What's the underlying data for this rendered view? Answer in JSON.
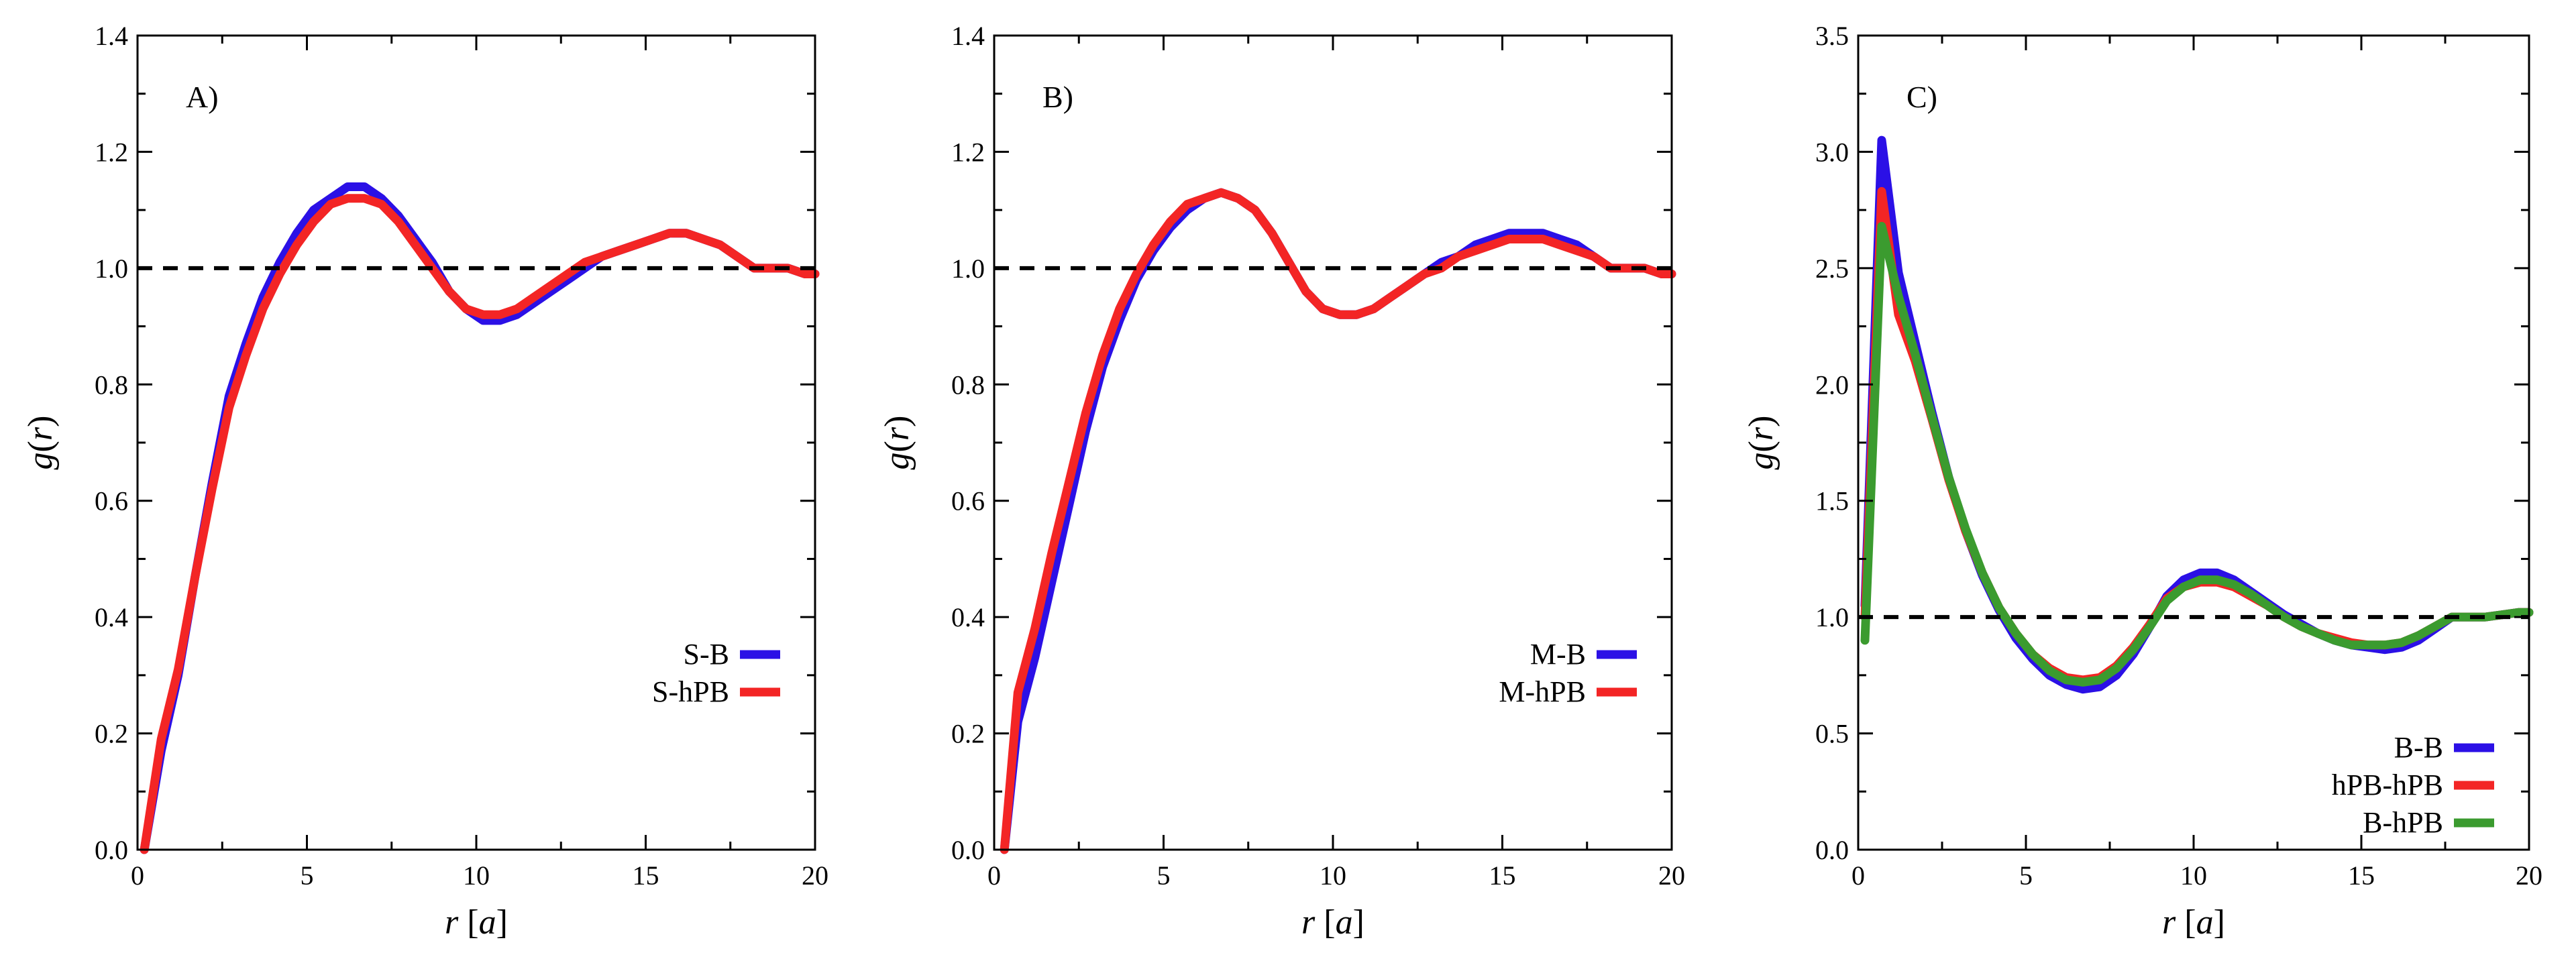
{
  "figure": {
    "xlabel_var": "r",
    "xlabel_unit": "a",
    "ylabel_fn": "g",
    "ylabel_arg": "r"
  },
  "chart_data": [
    {
      "type": "line",
      "panel_label": "A)",
      "xlim": [
        0,
        20
      ],
      "ylim": [
        0,
        1.4
      ],
      "xticks": [
        0,
        5,
        10,
        15,
        20
      ],
      "xtick_labels": [
        "0",
        "5",
        "10",
        "15",
        "20"
      ],
      "yticks": [
        0,
        0.2,
        0.4,
        0.6,
        0.8,
        1.0,
        1.2,
        1.4
      ],
      "ytick_labels": [
        "0.0",
        "0.2",
        "0.4",
        "0.6",
        "0.8",
        "1.0",
        "1.2",
        "1.4"
      ],
      "reference_line": {
        "y": 1.0,
        "style": "dashed"
      },
      "legend_position": "lower-right",
      "series": [
        {
          "name": "S-B",
          "color": "#2b10e6",
          "x": [
            0.2,
            0.7,
            1.2,
            1.7,
            2.2,
            2.7,
            3.2,
            3.7,
            4.2,
            4.7,
            5.2,
            5.7,
            6.2,
            6.7,
            7.2,
            7.7,
            8.2,
            8.7,
            9.2,
            9.7,
            10.2,
            10.7,
            11.2,
            11.7,
            12.2,
            12.7,
            13.2,
            13.7,
            14.2,
            14.7,
            15.2,
            15.7,
            16.2,
            16.7,
            17.2,
            17.7,
            18.2,
            18.7,
            19.2,
            19.7,
            20.0
          ],
          "y": [
            0.0,
            0.17,
            0.3,
            0.47,
            0.63,
            0.78,
            0.87,
            0.95,
            1.01,
            1.06,
            1.1,
            1.12,
            1.14,
            1.14,
            1.12,
            1.09,
            1.05,
            1.01,
            0.96,
            0.93,
            0.91,
            0.91,
            0.92,
            0.94,
            0.96,
            0.98,
            1.0,
            1.02,
            1.03,
            1.04,
            1.05,
            1.06,
            1.06,
            1.05,
            1.04,
            1.02,
            1.0,
            1.0,
            1.0,
            0.99,
            0.99
          ]
        },
        {
          "name": "S-hPB",
          "color": "#f32525",
          "x": [
            0.2,
            0.7,
            1.2,
            1.7,
            2.2,
            2.7,
            3.2,
            3.7,
            4.2,
            4.7,
            5.2,
            5.7,
            6.2,
            6.7,
            7.2,
            7.7,
            8.2,
            8.7,
            9.2,
            9.7,
            10.2,
            10.7,
            11.2,
            11.7,
            12.2,
            12.7,
            13.2,
            13.7,
            14.2,
            14.7,
            15.2,
            15.7,
            16.2,
            16.7,
            17.2,
            17.7,
            18.2,
            18.7,
            19.2,
            19.7,
            20.0
          ],
          "y": [
            0.0,
            0.19,
            0.31,
            0.47,
            0.62,
            0.76,
            0.85,
            0.93,
            0.99,
            1.04,
            1.08,
            1.11,
            1.12,
            1.12,
            1.11,
            1.08,
            1.04,
            1.0,
            0.96,
            0.93,
            0.92,
            0.92,
            0.93,
            0.95,
            0.97,
            0.99,
            1.01,
            1.02,
            1.03,
            1.04,
            1.05,
            1.06,
            1.06,
            1.05,
            1.04,
            1.02,
            1.0,
            1.0,
            1.0,
            0.99,
            0.99
          ]
        }
      ]
    },
    {
      "type": "line",
      "panel_label": "B)",
      "xlim": [
        0,
        20
      ],
      "ylim": [
        0,
        1.4
      ],
      "xticks": [
        0,
        5,
        10,
        15,
        20
      ],
      "xtick_labels": [
        "0",
        "5",
        "10",
        "15",
        "20"
      ],
      "yticks": [
        0,
        0.2,
        0.4,
        0.6,
        0.8,
        1.0,
        1.2,
        1.4
      ],
      "ytick_labels": [
        "0.0",
        "0.2",
        "0.4",
        "0.6",
        "0.8",
        "1.0",
        "1.2",
        "1.4"
      ],
      "reference_line": {
        "y": 1.0,
        "style": "dashed"
      },
      "legend_position": "lower-right",
      "series": [
        {
          "name": "M-B",
          "color": "#2b10e6",
          "x": [
            0.3,
            0.7,
            1.2,
            1.7,
            2.2,
            2.7,
            3.2,
            3.7,
            4.2,
            4.7,
            5.2,
            5.7,
            6.2,
            6.7,
            7.2,
            7.7,
            8.2,
            8.7,
            9.2,
            9.7,
            10.2,
            10.7,
            11.2,
            11.7,
            12.2,
            12.7,
            13.2,
            13.7,
            14.2,
            14.7,
            15.2,
            15.7,
            16.2,
            16.7,
            17.2,
            17.7,
            18.2,
            18.7,
            19.2,
            19.7,
            20.0
          ],
          "y": [
            0.0,
            0.22,
            0.33,
            0.46,
            0.59,
            0.72,
            0.83,
            0.91,
            0.98,
            1.03,
            1.07,
            1.1,
            1.12,
            1.13,
            1.12,
            1.1,
            1.06,
            1.01,
            0.96,
            0.93,
            0.92,
            0.92,
            0.93,
            0.95,
            0.97,
            0.99,
            1.01,
            1.02,
            1.04,
            1.05,
            1.06,
            1.06,
            1.06,
            1.05,
            1.04,
            1.02,
            1.0,
            1.0,
            1.0,
            0.99,
            0.99
          ]
        },
        {
          "name": "M-hPB",
          "color": "#f32525",
          "x": [
            0.3,
            0.7,
            1.2,
            1.7,
            2.2,
            2.7,
            3.2,
            3.7,
            4.2,
            4.7,
            5.2,
            5.7,
            6.2,
            6.7,
            7.2,
            7.7,
            8.2,
            8.7,
            9.2,
            9.7,
            10.2,
            10.7,
            11.2,
            11.7,
            12.2,
            12.7,
            13.2,
            13.7,
            14.2,
            14.7,
            15.2,
            15.7,
            16.2,
            16.7,
            17.2,
            17.7,
            18.2,
            18.7,
            19.2,
            19.7,
            20.0
          ],
          "y": [
            0.0,
            0.27,
            0.38,
            0.51,
            0.63,
            0.75,
            0.85,
            0.93,
            0.99,
            1.04,
            1.08,
            1.11,
            1.12,
            1.13,
            1.12,
            1.1,
            1.06,
            1.01,
            0.96,
            0.93,
            0.92,
            0.92,
            0.93,
            0.95,
            0.97,
            0.99,
            1.0,
            1.02,
            1.03,
            1.04,
            1.05,
            1.05,
            1.05,
            1.04,
            1.03,
            1.02,
            1.0,
            1.0,
            1.0,
            0.99,
            0.99
          ]
        }
      ]
    },
    {
      "type": "line",
      "panel_label": "C)",
      "xlim": [
        0,
        20
      ],
      "ylim": [
        0,
        3.5
      ],
      "xticks": [
        0,
        5,
        10,
        15,
        20
      ],
      "xtick_labels": [
        "0",
        "5",
        "10",
        "15",
        "20"
      ],
      "yticks": [
        0,
        0.5,
        1.0,
        1.5,
        2.0,
        2.5,
        3.0,
        3.5
      ],
      "ytick_labels": [
        "0.0",
        "0.5",
        "1.0",
        "1.5",
        "2.0",
        "2.5",
        "3.0",
        "3.5"
      ],
      "reference_line": {
        "y": 1.0,
        "style": "dashed"
      },
      "legend_position": "lower-right",
      "series": [
        {
          "name": "B-B",
          "color": "#2b10e6",
          "x": [
            0.2,
            0.7,
            1.2,
            1.7,
            2.2,
            2.7,
            3.2,
            3.7,
            4.2,
            4.7,
            5.2,
            5.7,
            6.2,
            6.7,
            7.2,
            7.7,
            8.2,
            8.7,
            9.2,
            9.7,
            10.2,
            10.7,
            11.2,
            11.7,
            12.2,
            12.7,
            13.2,
            13.7,
            14.2,
            14.7,
            15.2,
            15.7,
            16.2,
            16.7,
            17.2,
            17.7,
            18.2,
            18.7,
            19.2,
            19.7,
            20.0
          ],
          "y": [
            1.05,
            3.05,
            2.48,
            2.18,
            1.88,
            1.6,
            1.37,
            1.18,
            1.03,
            0.91,
            0.82,
            0.75,
            0.71,
            0.69,
            0.7,
            0.75,
            0.84,
            0.96,
            1.09,
            1.16,
            1.19,
            1.19,
            1.16,
            1.11,
            1.06,
            1.01,
            0.97,
            0.93,
            0.9,
            0.88,
            0.87,
            0.86,
            0.87,
            0.9,
            0.95,
            1.0,
            1.0,
            1.0,
            1.01,
            1.02,
            1.02
          ]
        },
        {
          "name": "hPB-hPB",
          "color": "#f32525",
          "x": [
            0.2,
            0.7,
            1.2,
            1.7,
            2.2,
            2.7,
            3.2,
            3.7,
            4.2,
            4.7,
            5.2,
            5.7,
            6.2,
            6.7,
            7.2,
            7.7,
            8.2,
            8.7,
            9.2,
            9.7,
            10.2,
            10.7,
            11.2,
            11.7,
            12.2,
            12.7,
            13.2,
            13.7,
            14.2,
            14.7,
            15.2,
            15.7,
            16.2,
            16.7,
            17.2,
            17.7,
            18.2,
            18.7,
            19.2,
            19.7,
            20.0
          ],
          "y": [
            1.0,
            2.83,
            2.3,
            2.1,
            1.85,
            1.59,
            1.37,
            1.19,
            1.04,
            0.93,
            0.84,
            0.78,
            0.74,
            0.73,
            0.74,
            0.79,
            0.87,
            0.97,
            1.08,
            1.13,
            1.15,
            1.15,
            1.13,
            1.09,
            1.05,
            1.0,
            0.96,
            0.93,
            0.91,
            0.89,
            0.88,
            0.88,
            0.89,
            0.92,
            0.96,
            1.0,
            1.0,
            1.0,
            1.01,
            1.02,
            1.02
          ]
        },
        {
          "name": "B-hPB",
          "color": "#3b9b2f",
          "x": [
            0.2,
            0.7,
            1.2,
            1.7,
            2.2,
            2.7,
            3.2,
            3.7,
            4.2,
            4.7,
            5.2,
            5.7,
            6.2,
            6.7,
            7.2,
            7.7,
            8.2,
            8.7,
            9.2,
            9.7,
            10.2,
            10.7,
            11.2,
            11.7,
            12.2,
            12.7,
            13.2,
            13.7,
            14.2,
            14.7,
            15.2,
            15.7,
            16.2,
            16.7,
            17.2,
            17.7,
            18.2,
            18.7,
            19.2,
            19.7,
            20.0
          ],
          "y": [
            0.9,
            2.68,
            2.38,
            2.13,
            1.86,
            1.6,
            1.38,
            1.19,
            1.04,
            0.93,
            0.84,
            0.77,
            0.73,
            0.72,
            0.73,
            0.78,
            0.86,
            0.96,
            1.07,
            1.13,
            1.16,
            1.16,
            1.14,
            1.1,
            1.05,
            1.0,
            0.96,
            0.93,
            0.9,
            0.88,
            0.88,
            0.88,
            0.89,
            0.92,
            0.96,
            1.0,
            1.0,
            1.0,
            1.01,
            1.02,
            1.02
          ]
        }
      ]
    }
  ]
}
